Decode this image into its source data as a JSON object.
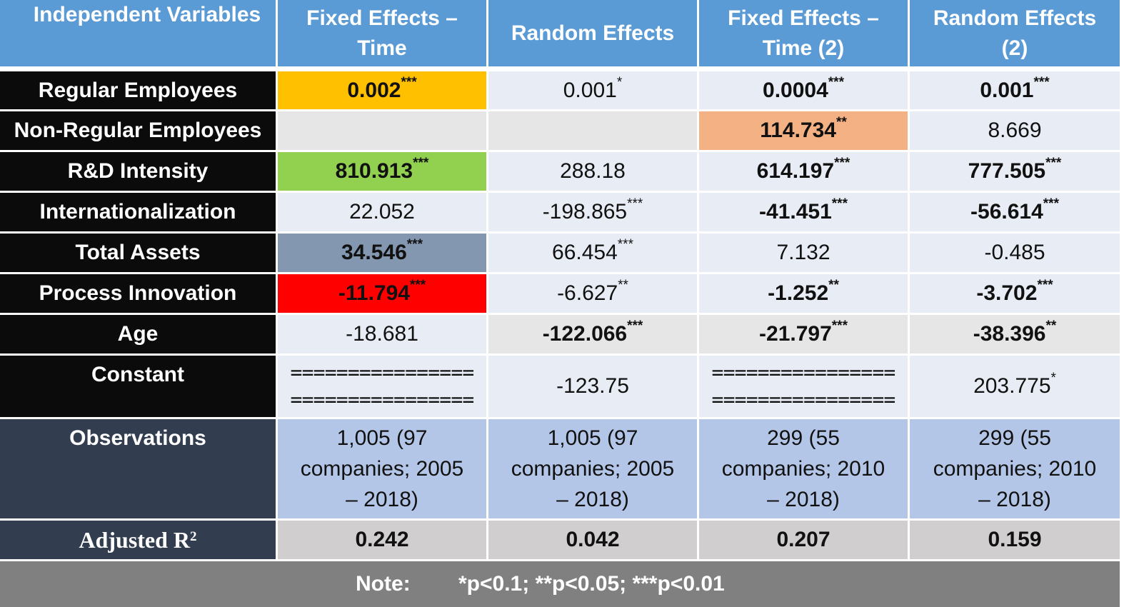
{
  "headers": [
    "Independent Variables",
    "Fixed Effects – Time",
    "Random Effects",
    "Fixed Effects – Time (2)",
    "Random Effects (2)"
  ],
  "header_lines": [
    [
      "Independent Variables"
    ],
    [
      "Fixed Effects –",
      "Time"
    ],
    [
      "Random Effects"
    ],
    [
      "Fixed Effects –",
      "Time (2)"
    ],
    [
      "Random Effects",
      "(2)"
    ]
  ],
  "rows": [
    {
      "label": "Regular Employees",
      "cells": [
        {
          "v": "0.002",
          "sig": "***",
          "bold": true,
          "bg": "#ffc000"
        },
        {
          "v": "0.001",
          "sig": "*",
          "bold": false,
          "bg": ""
        },
        {
          "v": "0.0004",
          "sig": "***",
          "bold": true,
          "bg": ""
        },
        {
          "v": "0.001",
          "sig": "***",
          "bold": true,
          "bg": ""
        }
      ]
    },
    {
      "label": "Non-Regular Employees",
      "cells": [
        {
          "v": "",
          "sig": "",
          "bold": false,
          "bg": "#e6e6e6"
        },
        {
          "v": "",
          "sig": "",
          "bold": false,
          "bg": "#e6e6e6"
        },
        {
          "v": "114.734",
          "sig": "**",
          "bold": true,
          "bg": "#f4b183"
        },
        {
          "v": "8.669",
          "sig": "",
          "bold": false,
          "bg": ""
        }
      ]
    },
    {
      "label": "R&D Intensity",
      "cells": [
        {
          "v": "810.913",
          "sig": "***",
          "bold": true,
          "bg": "#92d050"
        },
        {
          "v": "288.18",
          "sig": "",
          "bold": false,
          "bg": ""
        },
        {
          "v": "614.197",
          "sig": "***",
          "bold": true,
          "bg": ""
        },
        {
          "v": "777.505",
          "sig": "***",
          "bold": true,
          "bg": ""
        }
      ]
    },
    {
      "label": "Internationalization",
      "cells": [
        {
          "v": "22.052",
          "sig": "",
          "bold": false,
          "bg": ""
        },
        {
          "v": "-198.865",
          "sig": "***",
          "bold": false,
          "bg": ""
        },
        {
          "v": "-41.451",
          "sig": "***",
          "bold": true,
          "bg": ""
        },
        {
          "v": "-56.614",
          "sig": "***",
          "bold": true,
          "bg": ""
        }
      ]
    },
    {
      "label": "Total Assets",
      "cells": [
        {
          "v": "34.546",
          "sig": "***",
          "bold": true,
          "bg": "#8497b0"
        },
        {
          "v": "66.454",
          "sig": "***",
          "bold": false,
          "bg": ""
        },
        {
          "v": "7.132",
          "sig": "",
          "bold": false,
          "bg": ""
        },
        {
          "v": "-0.485",
          "sig": "",
          "bold": false,
          "bg": ""
        }
      ]
    },
    {
      "label": "Process Innovation",
      "cells": [
        {
          "v": "-11.794",
          "sig": "***",
          "bold": true,
          "bg": "#ff0000"
        },
        {
          "v": "-6.627",
          "sig": "**",
          "bold": false,
          "bg": ""
        },
        {
          "v": "-1.252",
          "sig": "**",
          "bold": true,
          "bg": ""
        },
        {
          "v": "-3.702",
          "sig": "***",
          "bold": true,
          "bg": ""
        }
      ]
    },
    {
      "label": "Age",
      "cells": [
        {
          "v": "-18.681",
          "sig": "",
          "bold": false,
          "bg": ""
        },
        {
          "v": "-122.066",
          "sig": "***",
          "bold": true,
          "bg": "#e6e6e6"
        },
        {
          "v": "-21.797",
          "sig": "***",
          "bold": true,
          "bg": "#e6e6e6"
        },
        {
          "v": "-38.396",
          "sig": "**",
          "bold": true,
          "bg": "#e6e6e6"
        }
      ]
    },
    {
      "label": "Constant",
      "cells": [
        {
          "v": "================",
          "v2": "================",
          "sig": "",
          "bold": false,
          "bg": "",
          "type": "eq"
        },
        {
          "v": "-123.75",
          "sig": "",
          "bold": false,
          "bg": ""
        },
        {
          "v": "================",
          "v2": "================",
          "sig": "",
          "bold": false,
          "bg": "",
          "type": "eq"
        },
        {
          "v": "203.775",
          "sig": "*",
          "bold": false,
          "bg": ""
        }
      ]
    }
  ],
  "observations": {
    "label": "Observations",
    "cells": [
      [
        "1,005 (97",
        "companies; 2005",
        "– 2018)"
      ],
      [
        "1,005 (97",
        "companies; 2005",
        "– 2018)"
      ],
      [
        "299 (55",
        "companies; 2010",
        "– 2018)"
      ],
      [
        "299 (55",
        "companies; 2010",
        "– 2018)"
      ]
    ]
  },
  "adjusted_r2": {
    "label": "Adjusted R",
    "label_sup": "2",
    "values": [
      "0.242",
      "0.042",
      "0.207",
      "0.159"
    ]
  },
  "note": {
    "label": "Note:",
    "text": "*p<0.1; **p<0.05; ***p<0.01"
  }
}
